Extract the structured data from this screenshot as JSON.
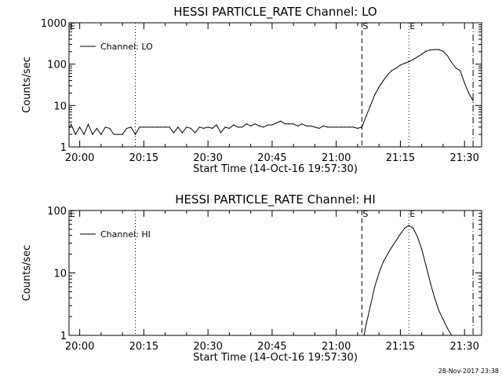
{
  "chart_data": [
    {
      "type": "line",
      "title": "HESSI PARTICLE_RATE Channel: LO",
      "xlabel": "Start Time (14-Oct-16 19:57:30)",
      "ylabel": "Counts/sec",
      "yscale": "log",
      "ylim": [
        1,
        1000
      ],
      "xlim": [
        "19:57:30",
        "21:34:00"
      ],
      "x_tick_labels": [
        "20:00",
        "20:15",
        "20:30",
        "20:45",
        "21:00",
        "21:15",
        "21:30"
      ],
      "x_tick_values": [
        "20:00",
        "20:15",
        "20:30",
        "20:45",
        "21:00",
        "21:15",
        "21:30"
      ],
      "y_tick_labels": [
        "1",
        "10",
        "100",
        "1000"
      ],
      "legend": {
        "position": "top-left",
        "entries": [
          "Channel: LO"
        ]
      },
      "grid": false,
      "vlines": [
        {
          "label": "E",
          "x": "19:57:30",
          "style": "dotted"
        },
        {
          "label": "",
          "x": "20:13:00",
          "style": "dotted"
        },
        {
          "label": "S",
          "x": "21:06:00",
          "style": "dashed"
        },
        {
          "label": "E",
          "x": "21:17:00",
          "style": "dotted"
        },
        {
          "label": "",
          "x": "21:32:00",
          "style": "dashdot"
        }
      ],
      "series": [
        {
          "name": "Channel: LO",
          "x": [
            "19:57:30",
            "19:58:00",
            "19:59:00",
            "20:00:00",
            "20:01:00",
            "20:02:00",
            "20:03:00",
            "20:04:00",
            "20:05:00",
            "20:06:00",
            "20:07:00",
            "20:08:00",
            "20:09:00",
            "20:10:00",
            "20:11:00",
            "20:12:00",
            "20:13:00",
            "20:14:00",
            "20:15:00",
            "20:16:00",
            "20:17:00",
            "20:18:00",
            "20:19:00",
            "20:20:00",
            "20:21:00",
            "20:22:00",
            "20:23:00",
            "20:24:00",
            "20:25:00",
            "20:26:00",
            "20:27:00",
            "20:28:00",
            "20:29:00",
            "20:30:00",
            "20:31:00",
            "20:32:00",
            "20:33:00",
            "20:34:00",
            "20:35:00",
            "20:36:00",
            "20:37:00",
            "20:38:00",
            "20:39:00",
            "20:40:00",
            "20:41:00",
            "20:42:00",
            "20:43:00",
            "20:44:00",
            "20:45:00",
            "20:46:00",
            "20:47:00",
            "20:48:00",
            "20:49:00",
            "20:50:00",
            "20:51:00",
            "20:52:00",
            "20:53:00",
            "20:54:00",
            "20:55:00",
            "20:56:00",
            "20:57:00",
            "20:58:00",
            "20:59:00",
            "21:00:00",
            "21:01:00",
            "21:02:00",
            "21:03:00",
            "21:04:00",
            "21:05:00",
            "21:06:00",
            "21:07:00",
            "21:08:00",
            "21:09:00",
            "21:10:00",
            "21:11:00",
            "21:12:00",
            "21:13:00",
            "21:14:00",
            "21:15:00",
            "21:16:00",
            "21:17:00",
            "21:18:00",
            "21:19:00",
            "21:20:00",
            "21:21:00",
            "21:22:00",
            "21:23:00",
            "21:24:00",
            "21:25:00",
            "21:26:00",
            "21:27:00",
            "21:28:00",
            "21:29:00",
            "21:30:00",
            "21:31:00",
            "21:32:00"
          ],
          "values": [
            2.8,
            3.5,
            2.0,
            3.0,
            2.0,
            3.5,
            2.0,
            2.8,
            2.0,
            3.0,
            2.8,
            2.0,
            2.0,
            2.0,
            2.8,
            3.0,
            2.0,
            3.0,
            3.0,
            3.0,
            3.0,
            3.0,
            3.0,
            3.0,
            3.0,
            2.2,
            3.0,
            2.2,
            3.0,
            2.8,
            2.2,
            3.0,
            2.8,
            3.0,
            2.8,
            3.4,
            2.2,
            3.0,
            2.8,
            3.4,
            3.0,
            3.0,
            3.6,
            3.2,
            3.6,
            3.2,
            3.0,
            3.4,
            3.4,
            3.8,
            4.2,
            3.6,
            3.6,
            3.6,
            3.2,
            3.6,
            3.2,
            3.2,
            3.0,
            2.8,
            3.2,
            3.0,
            3.0,
            3.0,
            3.0,
            3.0,
            3.0,
            3.0,
            2.8,
            3.0,
            5.5,
            10,
            18,
            28,
            40,
            55,
            70,
            80,
            95,
            105,
            115,
            130,
            150,
            175,
            205,
            220,
            225,
            225,
            205,
            160,
            110,
            80,
            70,
            35,
            20,
            13
          ]
        }
      ]
    },
    {
      "type": "line",
      "title": "HESSI PARTICLE_RATE Channel: HI",
      "xlabel": "Start Time (14-Oct-16 19:57:30)",
      "ylabel": "Counts/sec",
      "yscale": "log",
      "ylim": [
        1,
        100
      ],
      "xlim": [
        "19:57:30",
        "21:34:00"
      ],
      "x_tick_labels": [
        "20:00",
        "20:15",
        "20:30",
        "20:45",
        "21:00",
        "21:15",
        "21:30"
      ],
      "x_tick_values": [
        "20:00",
        "20:15",
        "20:30",
        "20:45",
        "21:00",
        "21:15",
        "21:30"
      ],
      "y_tick_labels": [
        "1",
        "10",
        "100"
      ],
      "legend": {
        "position": "top-left",
        "entries": [
          "Channel: HI"
        ]
      },
      "grid": false,
      "vlines": [
        {
          "label": "E",
          "x": "19:57:30",
          "style": "dotted"
        },
        {
          "label": "",
          "x": "20:13:00",
          "style": "dotted"
        },
        {
          "label": "S",
          "x": "21:06:00",
          "style": "dashed"
        },
        {
          "label": "E",
          "x": "21:17:00",
          "style": "dotted"
        },
        {
          "label": "",
          "x": "21:32:00",
          "style": "dashdot"
        }
      ],
      "series": [
        {
          "name": "Channel: HI",
          "x": [
            "21:06:30",
            "21:07:00",
            "21:08:00",
            "21:09:00",
            "21:10:00",
            "21:11:00",
            "21:12:00",
            "21:13:00",
            "21:14:00",
            "21:15:00",
            "21:16:00",
            "21:17:00",
            "21:18:00",
            "21:19:00",
            "21:20:00",
            "21:21:00",
            "21:22:00",
            "21:23:00",
            "21:24:00",
            "21:25:00",
            "21:26:00",
            "21:27:00"
          ],
          "values": [
            1.0,
            1.5,
            3.0,
            6.0,
            10,
            15,
            20,
            26,
            33,
            42,
            52,
            58,
            52,
            38,
            24,
            13,
            7,
            4,
            2.5,
            1.8,
            1.3,
            1.0
          ]
        }
      ]
    }
  ],
  "timestamp": "28-Nov-2017 23:38"
}
